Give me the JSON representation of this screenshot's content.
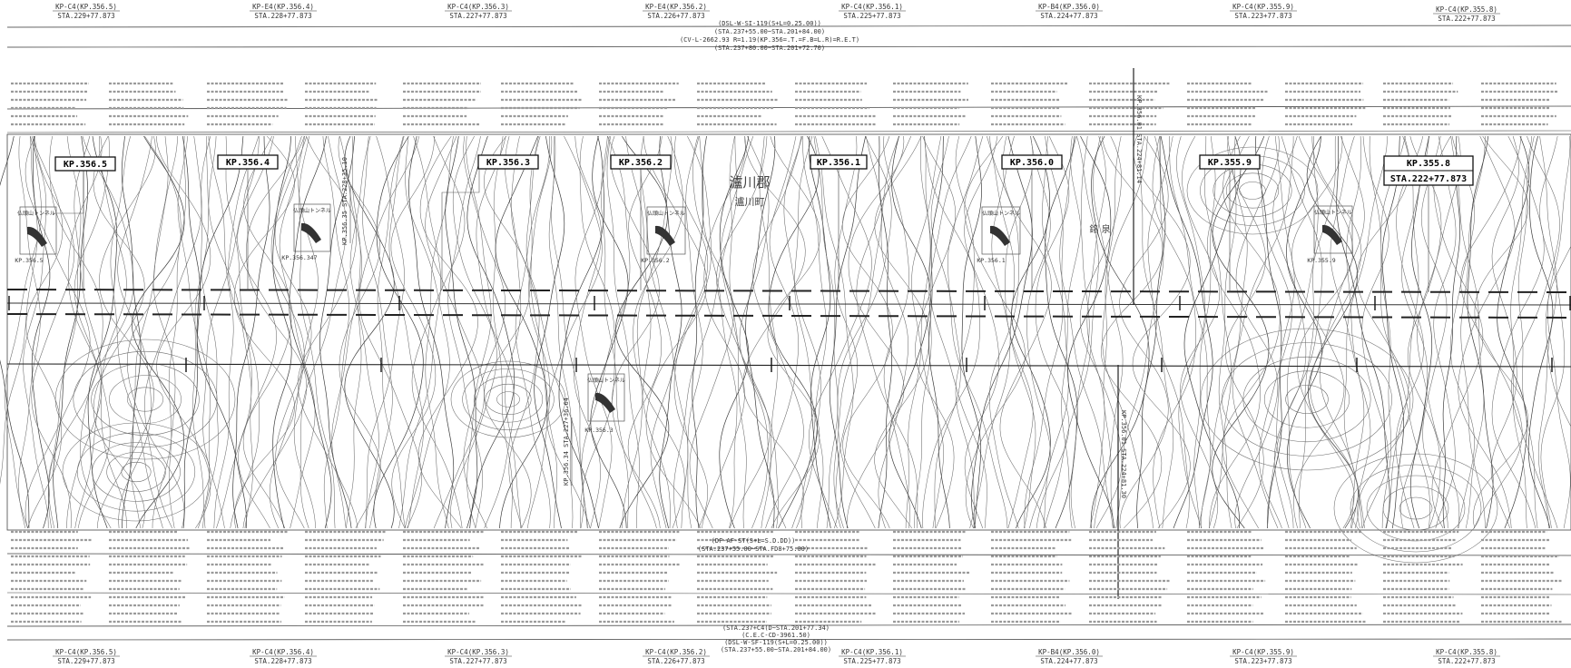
{
  "top_station_labels": [
    {
      "kp": "KP-C4(KP.356.5)",
      "sta": "STA.229+77.873"
    },
    {
      "kp": "KP-E4(KP.356.4)",
      "sta": "STA.228+77.873"
    },
    {
      "kp": "KP-C4(KP.356.3)",
      "sta": "STA.227+77.873"
    },
    {
      "kp": "KP-E4(KP.356.2)",
      "sta": "STA.226+77.873"
    },
    {
      "kp": "KP-C4(KP.356.1)",
      "sta": "STA.225+77.873"
    },
    {
      "kp": "KP-B4(KP.356.0)",
      "sta": "STA.224+77.873"
    },
    {
      "kp": "KP-C4(KP.355.9)",
      "sta": "STA.223+77.873"
    },
    {
      "kp": "KP-C4(KP.355.8)",
      "sta": "STA.222+77.873"
    }
  ],
  "bottom_station_labels": [
    {
      "kp": "KP-C4(KP.356.5)",
      "sta": "STA.229+77.873"
    },
    {
      "kp": "KP-C4(KP.356.4)",
      "sta": "STA.228+77.873"
    },
    {
      "kp": "KP-C4(KP.356.3)",
      "sta": "STA.227+77.873"
    },
    {
      "kp": "KP-C4(KP.356.2)",
      "sta": "STA.226+77.873"
    },
    {
      "kp": "KP-C4(KP.356.1)",
      "sta": "STA.225+77.873"
    },
    {
      "kp": "KP-B4(KP.356.0)",
      "sta": "STA.224+77.873"
    },
    {
      "kp": "KP-C4(KP.355.9)",
      "sta": "STA.223+77.873"
    },
    {
      "kp": "KP-C4(KP.355.8)",
      "sta": "STA.222+77.873"
    }
  ],
  "top_header_lines": [
    "(DSL-W-SI-119(S+L=0.25.00))",
    "(STA.237+55.00~STA.201+84.00)",
    "(CV-L-2662.93 R=1.19(KP.356=.T.=F.B=L.R)=R.E.T)",
    "(STA.237+80.00~STA.201+72.70)"
  ],
  "bottom_header_lines": [
    "(DF-AF-ST(S+L=S.D.DD))",
    "(STA.237+55.00~STA.FD8+75.00)",
    "(STA.237+C4(D~STA.201+77.34)",
    "(C.E.C-CD-3961.50)",
    "(DSL-W-SF-119(S+L=0.25.00))",
    "(STA.237+55.00~STA.201+84.00)"
  ],
  "kp_markers": [
    {
      "label": "KP.356.5"
    },
    {
      "label": "KP.356.4"
    },
    {
      "label": "KP.356.3"
    },
    {
      "label": "KP.356.2"
    },
    {
      "label": "KP.356.1"
    },
    {
      "label": "KP.356.0"
    },
    {
      "label": "KP.355.9"
    },
    {
      "label": "KP.355.8",
      "sta": "STA.222+77.873"
    }
  ],
  "place_names": {
    "county": "瀘川郡",
    "town": "瀘川町",
    "area": "銘 泉"
  },
  "tunnel_icons": [
    {
      "label": "仏頭山トンネル",
      "sub": "KP.356.5"
    },
    {
      "label": "仏頭山トンネル",
      "sub": "KP.356.347"
    },
    {
      "label": "仏頭山トンネル",
      "sub": "KP.356.2"
    },
    {
      "label": "仏頭山トンネル",
      "sub": "KP.356.1"
    },
    {
      "label": "仏頭山トンネル",
      "sub": "KP.355.9"
    },
    {
      "label": "仏頭山トンネル",
      "sub": "KP.356.3"
    }
  ],
  "vertical_callouts": {
    "left": "KP.356.35 STA.228+35.10",
    "middle": "KP.356.34 STA.227+36.64",
    "right_top": "KP.356.01 STA.224+81.14",
    "right_bottom": "KP.356.01 STA.224+81.30"
  },
  "colors": {
    "line": "#222222",
    "contour": "#6b6b6b",
    "contour_dark": "#3d3d3d",
    "background": "#ffffff"
  }
}
